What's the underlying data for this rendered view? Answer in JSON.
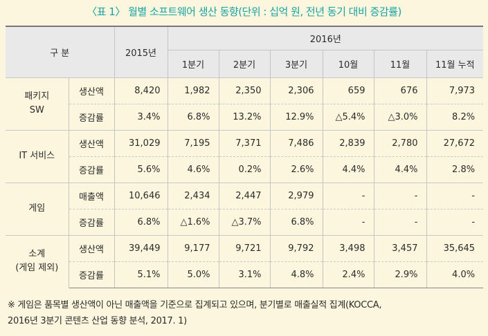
{
  "title": "〈표 1〉 월별 소프트웨어 생산 동향(단위 : 십억 원, 전년 동기 대비 증감률)",
  "header": {
    "gubun": "구 분",
    "y2015": "2015년",
    "y2016": "2016년",
    "periods": [
      "1분기",
      "2분기",
      "3분기",
      "10월",
      "11월",
      "11월 누적"
    ]
  },
  "groups": [
    {
      "category": [
        "패키지",
        "SW"
      ],
      "rows": [
        {
          "metric": "생산액",
          "y2015": "8,420",
          "values": [
            "1,982",
            "2,350",
            "2,306",
            "659",
            "676",
            "7,973"
          ]
        },
        {
          "metric": "증감률",
          "y2015": "3.4%",
          "values": [
            "6.8%",
            "13.2%",
            "12.9%",
            "△5.4%",
            "△3.0%",
            "8.2%"
          ]
        }
      ]
    },
    {
      "category": [
        "IT 서비스"
      ],
      "rows": [
        {
          "metric": "생산액",
          "y2015": "31,029",
          "values": [
            "7,195",
            "7,371",
            "7,486",
            "2,839",
            "2,780",
            "27,672"
          ]
        },
        {
          "metric": "증감률",
          "y2015": "5.6%",
          "values": [
            "4.6%",
            "0.2%",
            "2.6%",
            "4.4%",
            "4.4%",
            "2.8%"
          ]
        }
      ]
    },
    {
      "category": [
        "게임"
      ],
      "rows": [
        {
          "metric": "매출액",
          "y2015": "10,646",
          "values": [
            "2,434",
            "2,447",
            "2,979",
            "-",
            "-",
            "-"
          ]
        },
        {
          "metric": "증감률",
          "y2015": "6.8%",
          "values": [
            "△1.6%",
            "△3.7%",
            "6.8%",
            "-",
            "-",
            "-"
          ]
        }
      ]
    },
    {
      "category": [
        "소계",
        "(게임 제외)"
      ],
      "rows": [
        {
          "metric": "생산액",
          "y2015": "39,449",
          "values": [
            "9,177",
            "9,721",
            "9,792",
            "3,498",
            "3,457",
            "35,645"
          ]
        },
        {
          "metric": "증감률",
          "y2015": "5.1%",
          "values": [
            "5.0%",
            "3.1%",
            "4.8%",
            "2.4%",
            "2.9%",
            "4.0%"
          ]
        }
      ]
    }
  ],
  "note": [
    "※ 게임은 품목별 생산액이 아닌 매출액을 기준으로 집계되고 있으며, 분기별로 매출실적 집계(KOCCA,",
    "2016년 3분기 콘텐츠 산업 동향 분석, 2017. 1)"
  ]
}
